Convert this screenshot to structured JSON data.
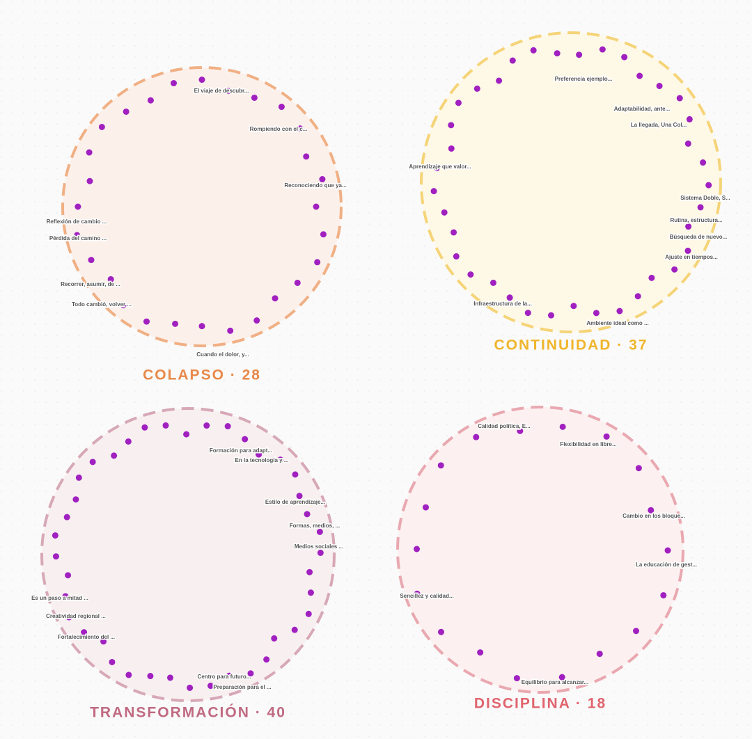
{
  "clusters": [
    {
      "label": "COLAPSO · 28",
      "notes": [
        "El viaje de descubr...",
        "Rompiendo con el c...",
        "Reconociendo que ya...",
        "Reflexión de cambio ...",
        "Pérdida del camino ...",
        "Recorrer, asumir, de ...",
        "Todo cambió, volver ...",
        "Cuando el dolor, y..."
      ]
    },
    {
      "label": "CONTINUIDAD · 37",
      "notes": [
        "Preferencia ejemplo...",
        "Adaptabilidad, ante...",
        "La llegada, Una Col...",
        "Aprendizaje que valor...",
        "Sistema Doble, S...",
        "Rutina, estructura...",
        "Búsqueda de nuevo...",
        "Ajuste en tiempos...",
        "Infraestructura de la...",
        "Ambiente ideal como ..."
      ]
    },
    {
      "label": "TRANSFORMACIÓN · 40",
      "notes": [
        "Formación para adapt...",
        "En la tecnología y ...",
        "Estilo de aprendizaje...",
        "Formas, medios, ...",
        "Medios sociales ...",
        "Es un paso a mitad ...",
        "Creatividad regional ...",
        "Fortalecimiento del ...",
        "Centro para futuro...",
        "Preparación para el ..."
      ]
    },
    {
      "label": "DISCIPLINA · 18",
      "notes": [
        "Calidad política, E...",
        "Flexibilidad en libre...",
        "Cambio en los bloque...",
        "La educación de gest...",
        "Sencillez y calidad...",
        "Equilibrio para alcanzar..."
      ]
    }
  ]
}
